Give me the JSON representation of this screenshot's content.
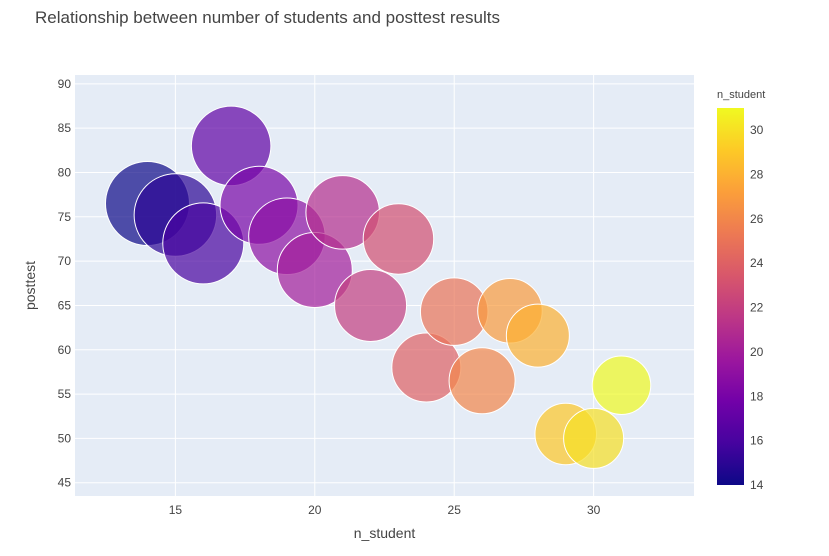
{
  "chart_data": {
    "type": "scatter",
    "title": "Relationship between number of students and posttest results",
    "xlabel": "n_student",
    "ylabel": "posttest",
    "xlim": [
      11.4,
      33.6
    ],
    "ylim": [
      43.5,
      91
    ],
    "xticks": [
      15,
      20,
      25,
      30
    ],
    "yticks": [
      45,
      50,
      55,
      60,
      65,
      70,
      75,
      80,
      85,
      90
    ],
    "grid": true,
    "marker_size_encodes": "n_student",
    "color_encodes": "n_student",
    "colorbar": {
      "title": "n_student",
      "min": 14,
      "max": 31,
      "ticks": [
        14,
        16,
        18,
        20,
        22,
        24,
        26,
        28,
        30
      ]
    },
    "x": [
      14,
      15,
      16,
      17,
      18,
      19,
      20,
      21,
      22,
      23,
      24,
      25,
      26,
      27,
      28,
      29,
      30,
      31
    ],
    "y": [
      76.5,
      75.2,
      72,
      83,
      76.3,
      72.8,
      69,
      75.5,
      65,
      72.5,
      58,
      64.3,
      56.5,
      64.4,
      61.6,
      50.5,
      50,
      56
    ],
    "colorscale": [
      "#0d0887",
      "#46039f",
      "#7201a8",
      "#9c179e",
      "#bd3786",
      "#d8576b",
      "#ed7953",
      "#fb9f3a",
      "#fdca26",
      "#f0f921"
    ]
  }
}
